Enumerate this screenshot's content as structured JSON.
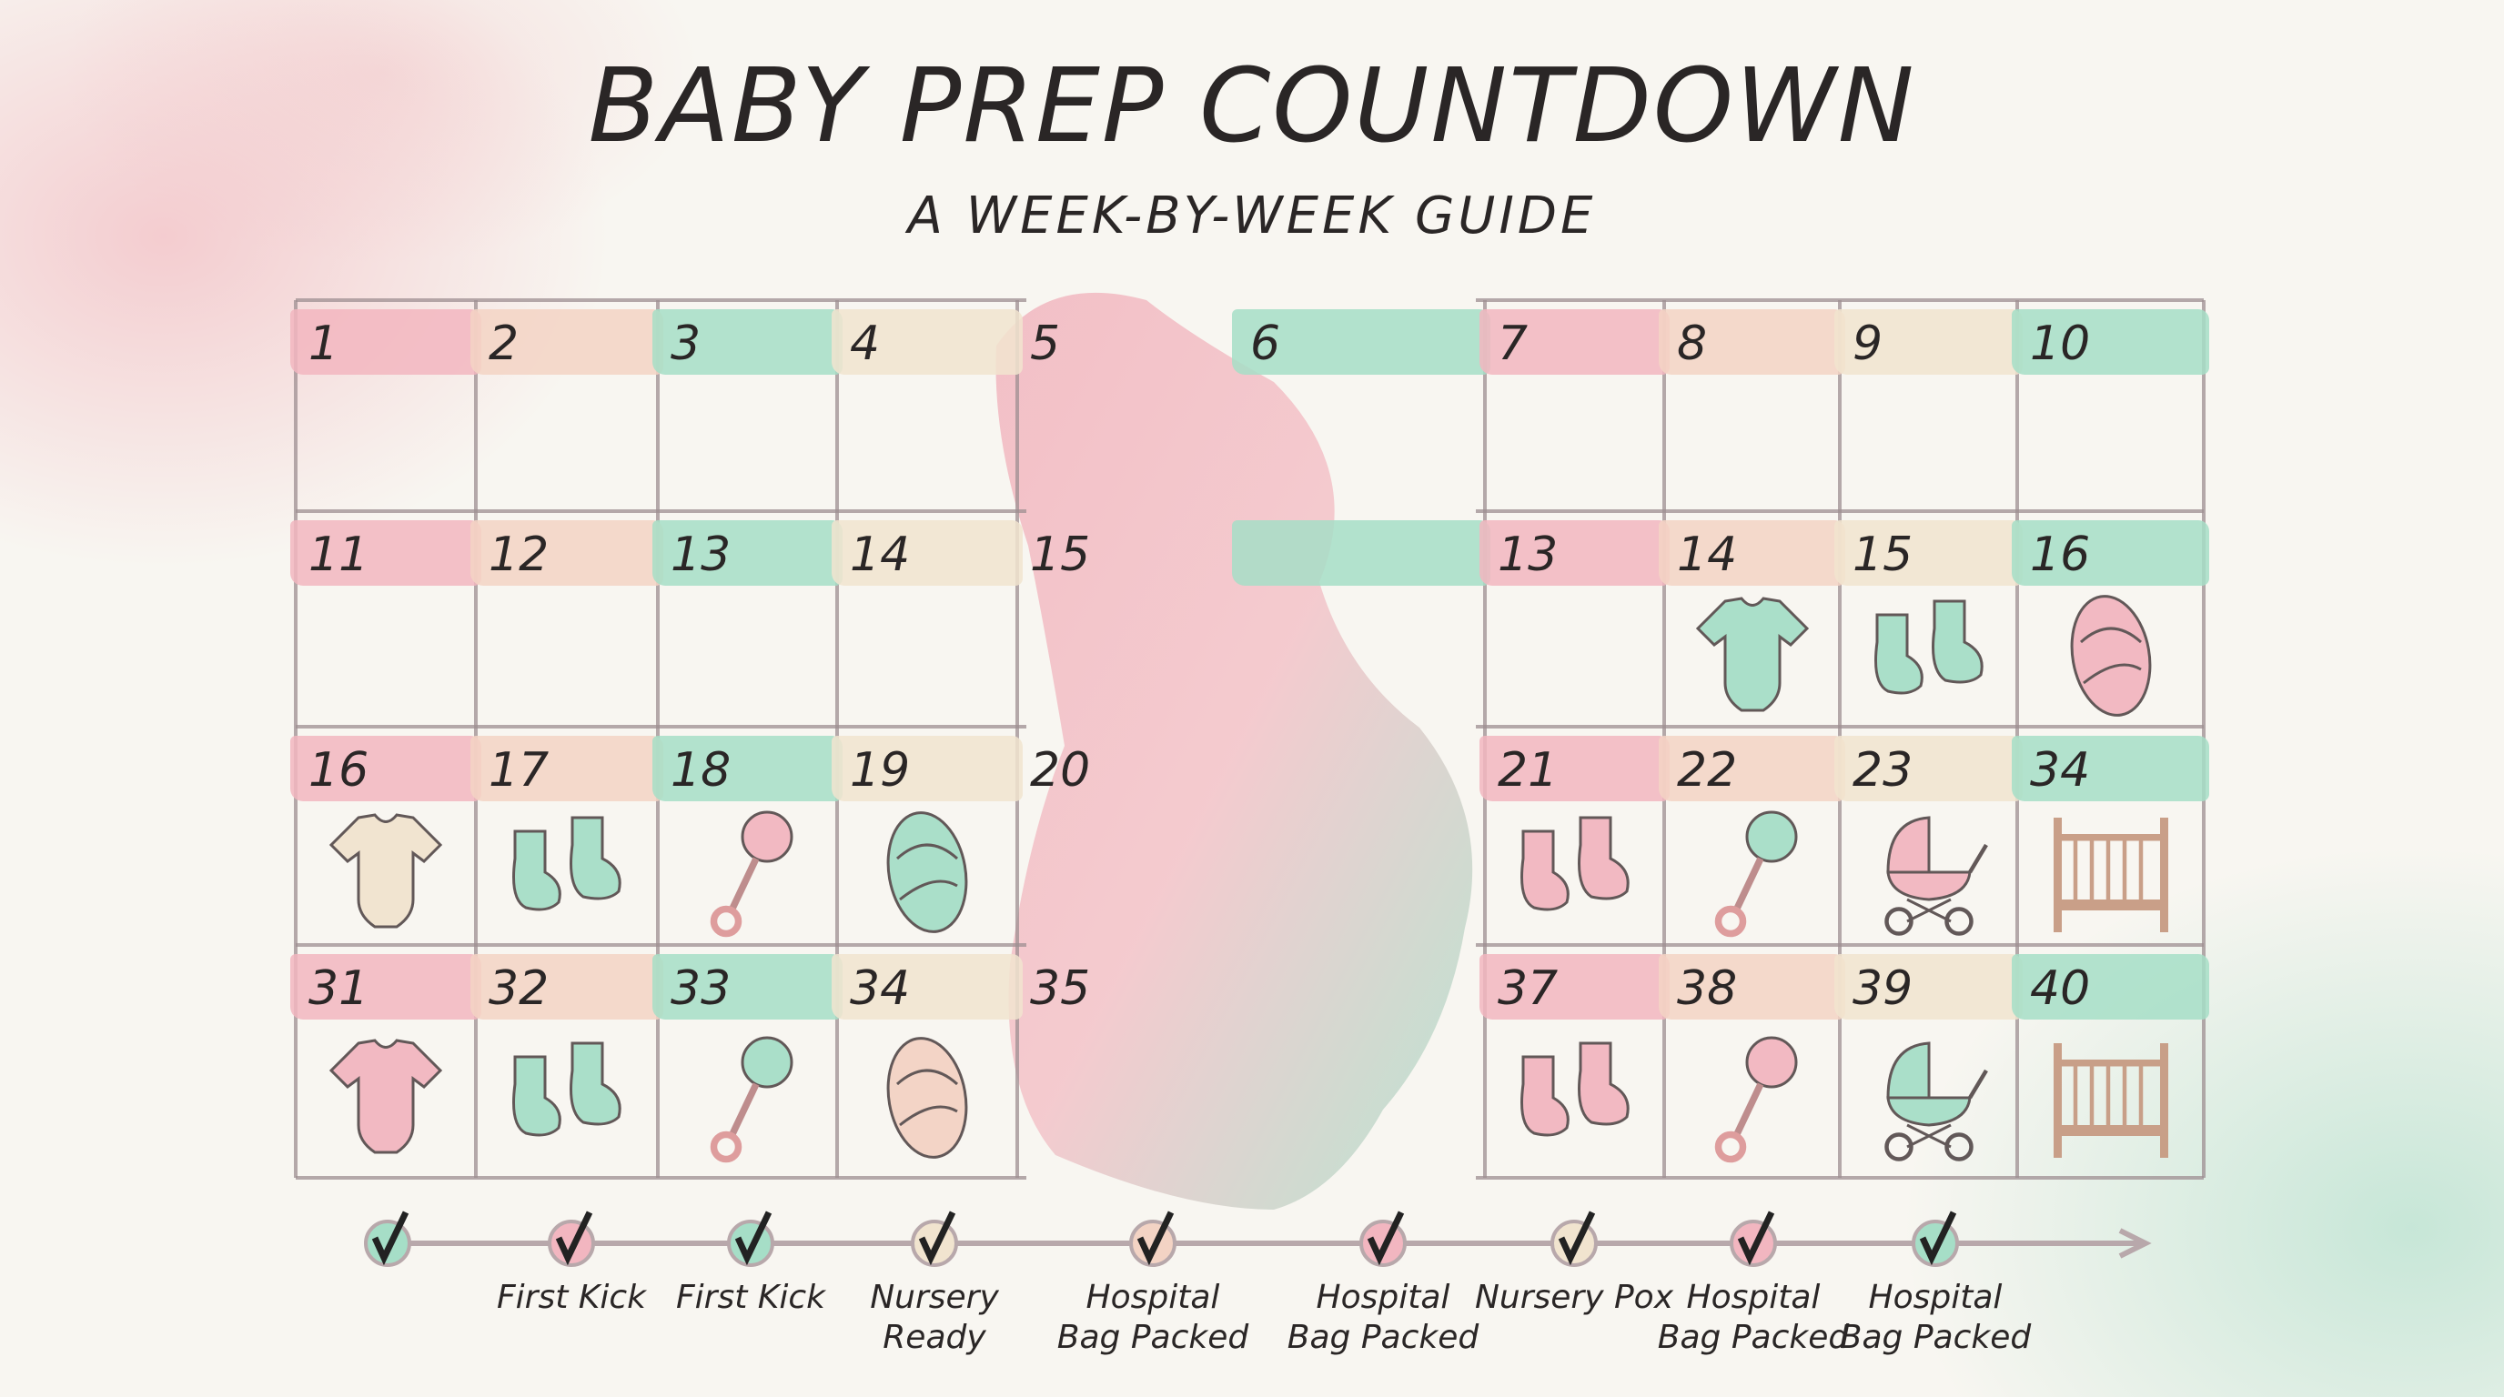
{
  "header": {
    "title": "BABY PREP COUNTDOWN",
    "subtitle": "A WEEK-BY-WEEK GUIDE"
  },
  "colors": {
    "pink": "#f2b6c0",
    "peach": "#f3d3c4",
    "mint": "#a6dec7",
    "cream": "#f1e4cf",
    "line": "#9e8f92",
    "crib": "#c79b83"
  },
  "grid": {
    "rows": [
      {
        "cells": [
          {
            "n": "1",
            "band": "pink"
          },
          {
            "n": "2",
            "band": "peach"
          },
          {
            "n": "3",
            "band": "mint"
          },
          {
            "n": "4",
            "band": "cream"
          },
          {
            "n": "5",
            "band": "none"
          },
          {
            "n": "6",
            "band": "mint"
          },
          {
            "n": "7",
            "band": "pink"
          },
          {
            "n": "8",
            "band": "peach"
          },
          {
            "n": "9",
            "band": "cream"
          },
          {
            "n": "10",
            "band": "mint"
          }
        ]
      },
      {
        "cells": [
          {
            "n": "11",
            "band": "pink"
          },
          {
            "n": "12",
            "band": "peach"
          },
          {
            "n": "13",
            "band": "mint"
          },
          {
            "n": "14",
            "band": "cream"
          },
          {
            "n": "15",
            "band": "none"
          },
          {
            "n": "",
            "band": "mint"
          },
          {
            "n": "13",
            "band": "pink"
          },
          {
            "n": "14",
            "band": "peach",
            "icon": "onesie",
            "icon_color": "mint"
          },
          {
            "n": "15",
            "band": "cream",
            "icon": "booties",
            "icon_color": "mint"
          },
          {
            "n": "16",
            "band": "mint",
            "icon": "swaddle",
            "icon_color": "pink"
          }
        ]
      },
      {
        "cells": [
          {
            "n": "16",
            "band": "pink",
            "icon": "onesie",
            "icon_color": "cream"
          },
          {
            "n": "17",
            "band": "peach",
            "icon": "booties",
            "icon_color": "mint"
          },
          {
            "n": "18",
            "band": "mint",
            "icon": "rattle",
            "icon_color": "pink"
          },
          {
            "n": "19",
            "band": "cream",
            "icon": "swaddle",
            "icon_color": "mint"
          },
          {
            "n": "20",
            "band": "none"
          },
          {
            "n": "",
            "band": "none"
          },
          {
            "n": "21",
            "band": "pink",
            "icon": "booties",
            "icon_color": "pink"
          },
          {
            "n": "22",
            "band": "peach",
            "icon": "rattle",
            "icon_color": "mint"
          },
          {
            "n": "23",
            "band": "cream",
            "icon": "stroller",
            "icon_color": "pink"
          },
          {
            "n": "34",
            "band": "mint",
            "icon": "crib",
            "icon_color": "crib"
          }
        ]
      },
      {
        "cells": [
          {
            "n": "31",
            "band": "pink",
            "icon": "onesie",
            "icon_color": "pink"
          },
          {
            "n": "32",
            "band": "peach",
            "icon": "booties",
            "icon_color": "mint"
          },
          {
            "n": "33",
            "band": "mint",
            "icon": "rattle",
            "icon_color": "mint"
          },
          {
            "n": "34",
            "band": "cream",
            "icon": "swaddle",
            "icon_color": "peach"
          },
          {
            "n": "35",
            "band": "none"
          },
          {
            "n": "",
            "band": "none"
          },
          {
            "n": "37",
            "band": "pink",
            "icon": "booties",
            "icon_color": "pink"
          },
          {
            "n": "38",
            "band": "peach",
            "icon": "rattle",
            "icon_color": "pink"
          },
          {
            "n": "39",
            "band": "cream",
            "icon": "stroller",
            "icon_color": "mint"
          },
          {
            "n": "40",
            "band": "mint",
            "icon": "crib",
            "icon_color": "crib"
          }
        ]
      }
    ]
  },
  "timeline": {
    "milestones": [
      {
        "label": "",
        "color": "mint",
        "done": true
      },
      {
        "label": "First Kick",
        "color": "pink",
        "done": true
      },
      {
        "label": "First Kick",
        "color": "mint",
        "done": true
      },
      {
        "label": "Nursery Ready",
        "color": "cream",
        "done": true
      },
      {
        "label": "Hospital Bag Packed",
        "color": "peach",
        "done": true
      },
      {
        "label": "Hospital Bag Packed",
        "color": "pink",
        "done": true
      },
      {
        "label": "Nursery Pox",
        "color": "cream",
        "done": true
      },
      {
        "label": "Hospital Bag Packed",
        "color": "pink",
        "done": true
      },
      {
        "label": "Hospital Bag Packed",
        "color": "mint",
        "done": true
      }
    ]
  }
}
